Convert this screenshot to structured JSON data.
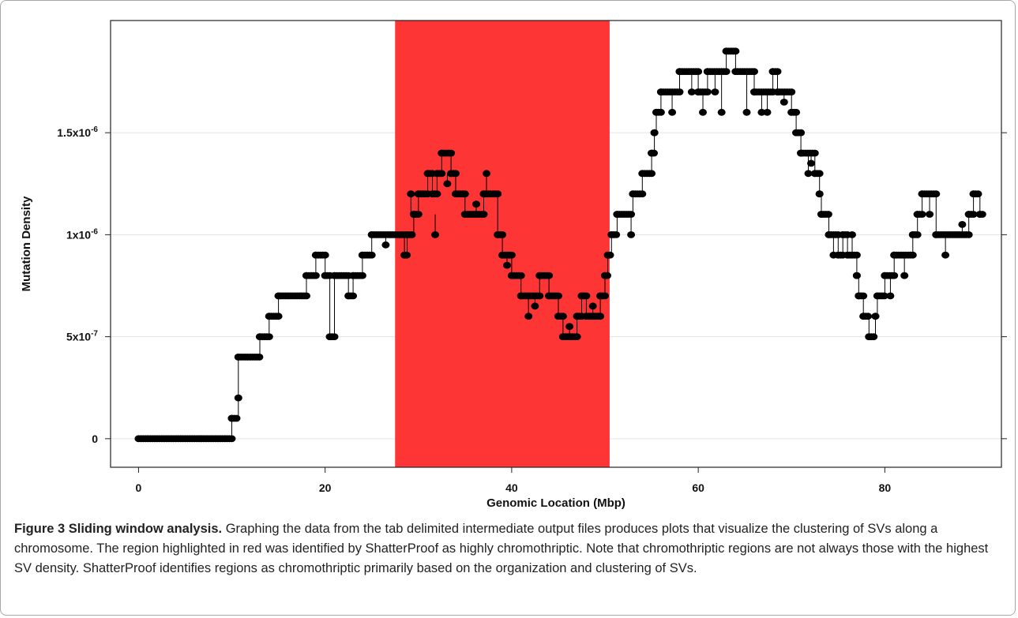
{
  "chart_data": {
    "type": "scatter",
    "xlabel": "Genomic Location (Mbp)",
    "ylabel": "Mutation Density",
    "xlim": [
      -3,
      92.5
    ],
    "ylim": [
      -1.4e-07,
      2.05e-06
    ],
    "xticks": [
      0,
      20,
      40,
      60,
      80
    ],
    "xtick_labels": [
      "0",
      "20",
      "40",
      "60",
      "80"
    ],
    "yticks": [
      0,
      5e-07,
      1e-06,
      1.5e-06
    ],
    "ytick_labels": [
      "0",
      "5x10",
      "1x10",
      "1.5x10"
    ],
    "ytick_exponents": [
      "",
      "-7",
      "-6",
      "-6"
    ],
    "grid": "horizontal",
    "highlight": {
      "x_start": 27.5,
      "x_end": 50.5,
      "color": "#fd3535"
    },
    "x_step": 0.25,
    "series": [
      {
        "marker_color": "#000000",
        "points": [
          [
            0,
            0
          ],
          [
            10,
            0
          ],
          [
            10,
            1e-07
          ],
          [
            10.7,
            1e-07
          ],
          [
            10.7,
            2e-07
          ],
          [
            10.7,
            4e-07
          ],
          [
            13,
            4e-07
          ],
          [
            13,
            5e-07
          ],
          [
            14,
            5e-07
          ],
          [
            14,
            6e-07
          ],
          [
            15,
            6e-07
          ],
          [
            15,
            7e-07
          ],
          [
            18,
            7e-07
          ],
          [
            18,
            8e-07
          ],
          [
            19,
            8e-07
          ],
          [
            19,
            9e-07
          ],
          [
            20,
            9e-07
          ],
          [
            20,
            8e-07
          ],
          [
            20.5,
            8e-07
          ],
          [
            20.5,
            5e-07
          ],
          [
            21,
            5e-07
          ],
          [
            21,
            8e-07
          ],
          [
            22.5,
            8e-07
          ],
          [
            22.5,
            7e-07
          ],
          [
            23,
            7e-07
          ],
          [
            23,
            8e-07
          ],
          [
            24,
            8e-07
          ],
          [
            24,
            9e-07
          ],
          [
            25,
            9e-07
          ],
          [
            25,
            1e-06
          ],
          [
            28.5,
            1e-06
          ],
          [
            28.5,
            9e-07
          ],
          [
            28.8,
            9e-07
          ],
          [
            28.8,
            1e-06
          ],
          [
            29.5,
            1e-06
          ],
          [
            29.5,
            1.1e-06
          ],
          [
            30,
            1.1e-06
          ],
          [
            30,
            1.2e-06
          ],
          [
            31,
            1.2e-06
          ],
          [
            31,
            1.3e-06
          ],
          [
            31.5,
            1.3e-06
          ],
          [
            31.5,
            1.2e-06
          ],
          [
            32,
            1.2e-06
          ],
          [
            32,
            1.3e-06
          ],
          [
            32.5,
            1.3e-06
          ],
          [
            32.5,
            1.4e-06
          ],
          [
            33.5,
            1.4e-06
          ],
          [
            33.5,
            1.3e-06
          ],
          [
            34,
            1.3e-06
          ],
          [
            34,
            1.2e-06
          ],
          [
            35,
            1.2e-06
          ],
          [
            35,
            1.1e-06
          ],
          [
            37,
            1.1e-06
          ],
          [
            37,
            1.2e-06
          ],
          [
            38.5,
            1.2e-06
          ],
          [
            38.5,
            1e-06
          ],
          [
            39,
            1e-06
          ],
          [
            39,
            9e-07
          ],
          [
            40,
            9e-07
          ],
          [
            40,
            8e-07
          ],
          [
            41,
            8e-07
          ],
          [
            41,
            7e-07
          ],
          [
            43,
            7e-07
          ],
          [
            43,
            8e-07
          ],
          [
            44,
            8e-07
          ],
          [
            44,
            7e-07
          ],
          [
            45,
            7e-07
          ],
          [
            45,
            6e-07
          ],
          [
            45.5,
            6e-07
          ],
          [
            45.5,
            5e-07
          ],
          [
            47,
            5e-07
          ],
          [
            47,
            6e-07
          ],
          [
            47.5,
            6e-07
          ],
          [
            47.5,
            7e-07
          ],
          [
            48,
            7e-07
          ],
          [
            48,
            6e-07
          ],
          [
            49.5,
            6e-07
          ],
          [
            49.5,
            7e-07
          ],
          [
            50,
            7e-07
          ],
          [
            50,
            8e-07
          ],
          [
            50.3,
            8e-07
          ],
          [
            50.3,
            9e-07
          ],
          [
            50.7,
            9e-07
          ],
          [
            50.7,
            1e-06
          ],
          [
            51.3,
            1e-06
          ],
          [
            51.3,
            1.1e-06
          ],
          [
            53,
            1.1e-06
          ],
          [
            53,
            1.2e-06
          ],
          [
            54,
            1.2e-06
          ],
          [
            54,
            1.3e-06
          ],
          [
            55,
            1.3e-06
          ],
          [
            55,
            1.4e-06
          ],
          [
            55.3,
            1.4e-06
          ],
          [
            55.3,
            1.5e-06
          ],
          [
            55.5,
            1.5e-06
          ],
          [
            55.5,
            1.6e-06
          ],
          [
            56,
            1.6e-06
          ],
          [
            56,
            1.7e-06
          ],
          [
            58,
            1.7e-06
          ],
          [
            58,
            1.8e-06
          ],
          [
            60,
            1.8e-06
          ],
          [
            60,
            1.7e-06
          ],
          [
            61,
            1.7e-06
          ],
          [
            61,
            1.8e-06
          ],
          [
            63,
            1.8e-06
          ],
          [
            63,
            1.9e-06
          ],
          [
            64,
            1.9e-06
          ],
          [
            64,
            1.8e-06
          ],
          [
            66,
            1.8e-06
          ],
          [
            66,
            1.7e-06
          ],
          [
            68,
            1.7e-06
          ],
          [
            68,
            1.8e-06
          ],
          [
            68.5,
            1.8e-06
          ],
          [
            68.5,
            1.7e-06
          ],
          [
            70,
            1.7e-06
          ],
          [
            70,
            1.6e-06
          ],
          [
            70.5,
            1.6e-06
          ],
          [
            70.5,
            1.5e-06
          ],
          [
            71,
            1.5e-06
          ],
          [
            71,
            1.4e-06
          ],
          [
            72.5,
            1.4e-06
          ],
          [
            72.5,
            1.3e-06
          ],
          [
            73,
            1.3e-06
          ],
          [
            73,
            1.2e-06
          ],
          [
            73.2,
            1.2e-06
          ],
          [
            73.2,
            1.1e-06
          ],
          [
            74,
            1.1e-06
          ],
          [
            74,
            1e-06
          ],
          [
            75,
            1e-06
          ],
          [
            75,
            9e-07
          ],
          [
            75.5,
            9e-07
          ],
          [
            75.5,
            1e-06
          ],
          [
            76,
            1e-06
          ],
          [
            76,
            9e-07
          ],
          [
            77,
            9e-07
          ],
          [
            77,
            8e-07
          ],
          [
            77.2,
            8e-07
          ],
          [
            77.2,
            7e-07
          ],
          [
            77.7,
            7e-07
          ],
          [
            77.7,
            6e-07
          ],
          [
            78.3,
            6e-07
          ],
          [
            78.3,
            5e-07
          ],
          [
            79,
            5e-07
          ],
          [
            79,
            6e-07
          ],
          [
            79.2,
            6e-07
          ],
          [
            79.2,
            7e-07
          ],
          [
            80,
            7e-07
          ],
          [
            80,
            8e-07
          ],
          [
            81,
            8e-07
          ],
          [
            81,
            9e-07
          ],
          [
            83,
            9e-07
          ],
          [
            83,
            1e-06
          ],
          [
            83.5,
            1e-06
          ],
          [
            83.5,
            1.1e-06
          ],
          [
            84,
            1.1e-06
          ],
          [
            84,
            1.2e-06
          ],
          [
            85.5,
            1.2e-06
          ],
          [
            85.5,
            1e-06
          ],
          [
            89,
            1e-06
          ],
          [
            89,
            1.1e-06
          ],
          [
            89.5,
            1.1e-06
          ],
          [
            89.5,
            1.2e-06
          ],
          [
            90.2,
            1.2e-06
          ],
          [
            90.2,
            1.1e-06
          ],
          [
            90.5,
            1.1e-06
          ]
        ],
        "spikes": [
          [
            26.5,
            1e-06,
            9.5e-07
          ],
          [
            29.2,
            1.1e-06,
            1.2e-06
          ],
          [
            31.8,
            1.1e-06,
            1e-06
          ],
          [
            33.1,
            1.3e-06,
            1.25e-06
          ],
          [
            36.2,
            1.1e-06,
            1.15e-06
          ],
          [
            37.3,
            1.2e-06,
            1.3e-06
          ],
          [
            39.5,
            9e-07,
            8.5e-07
          ],
          [
            41.8,
            7e-07,
            6e-07
          ],
          [
            42.5,
            7e-07,
            6.5e-07
          ],
          [
            46.2,
            5e-07,
            5.5e-07
          ],
          [
            48.7,
            6e-07,
            6.5e-07
          ],
          [
            52.8,
            1.1e-06,
            1e-06
          ],
          [
            57.2,
            1.7e-06,
            1.6e-06
          ],
          [
            59.3,
            1.8e-06,
            1.7e-06
          ],
          [
            60.5,
            1.7e-06,
            1.6e-06
          ],
          [
            61.8,
            1.8e-06,
            1.7e-06
          ],
          [
            62.5,
            1.8e-06,
            1.6e-06
          ],
          [
            65.2,
            1.8e-06,
            1.6e-06
          ],
          [
            66.8,
            1.7e-06,
            1.6e-06
          ],
          [
            67.4,
            1.7e-06,
            1.6e-06
          ],
          [
            69.2,
            1.7e-06,
            1.65e-06
          ],
          [
            71.8,
            1.4e-06,
            1.3e-06
          ],
          [
            72.1,
            1.4e-06,
            1.35e-06
          ],
          [
            74.5,
            1e-06,
            9e-07
          ],
          [
            76.5,
            9e-07,
            1e-06
          ],
          [
            80.6,
            8e-07,
            7e-07
          ],
          [
            82.1,
            9e-07,
            8e-07
          ],
          [
            84.8,
            1.2e-06,
            1.1e-06
          ],
          [
            86.5,
            1e-06,
            9e-07
          ],
          [
            88.3,
            1e-06,
            1.05e-06
          ]
        ]
      }
    ]
  },
  "caption": {
    "label": "Figure 3 Sliding window analysis.",
    "text": " Graphing the data from the tab delimited intermediate output files produces plots that visualize the clustering of SVs along a chromosome. The region highlighted in red was identified by ShatterProof as highly chromothriptic. Note that chromothriptic regions are not always those with the highest SV density. ShatterProof identifies regions as chromothriptic primarily based on the organization and clustering of SVs."
  }
}
